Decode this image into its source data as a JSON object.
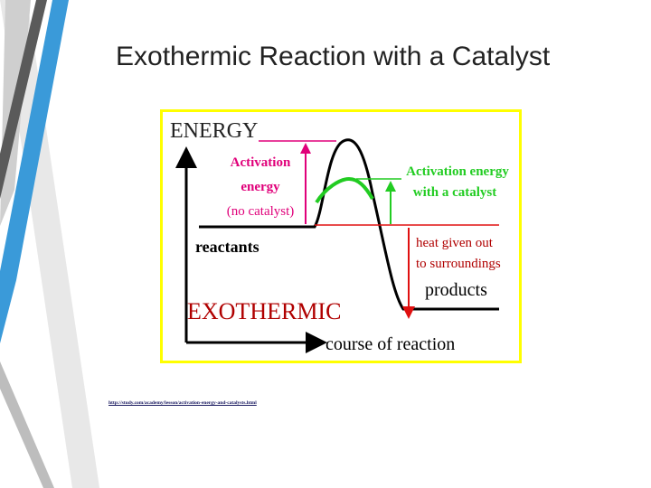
{
  "slide": {
    "title": "Exothermic Reaction with a Catalyst",
    "source_link": "http://study.com/academy/lesson/activation-energy-and-catalysts.html"
  },
  "diagram": {
    "y_axis_label": "ENERGY",
    "x_axis_label": "course of reaction",
    "reaction_type": "EXOTHERMIC",
    "reactants_label": "reactants",
    "products_label": "products",
    "activation_no_catalyst": [
      "Activation",
      "energy",
      "(no catalyst)"
    ],
    "activation_with_catalyst": [
      "Activation energy",
      "with a catalyst"
    ],
    "heat_label": [
      "heat given out",
      "to surroundings"
    ]
  },
  "colors": {
    "accent_blue": "#3a9ad9",
    "frame_yellow": "#ffff00",
    "magenta": "#e0007a",
    "green": "#22cc22",
    "red": "#e01010",
    "dark_red": "#b00000"
  }
}
